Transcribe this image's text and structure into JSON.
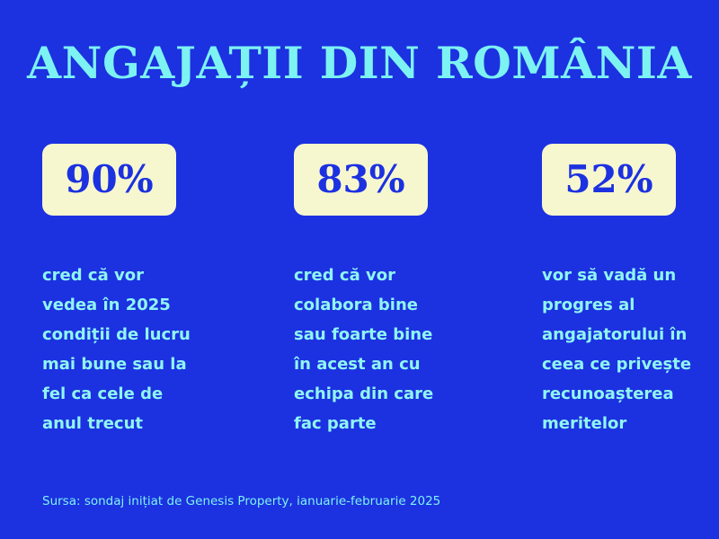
{
  "title": "ANGAJAȚII DIN ROMÂNIA",
  "stats": [
    {
      "value": "90%",
      "lines": [
        "cred că vor",
        "vedea în 2025",
        "condiții de lucru",
        "mai bune sau la",
        "fel ca cele de",
        "anul trecut"
      ]
    },
    {
      "value": "83%",
      "lines": [
        "cred că vor",
        "colabora bine",
        "sau foarte bine",
        "în acest an cu",
        "echipa din care",
        "fac parte"
      ]
    },
    {
      "value": "52%",
      "lines": [
        "vor să vadă un",
        "progres al",
        "angajatorului în",
        "ceea ce privește",
        "recunoașterea",
        "meritelor"
      ]
    }
  ],
  "source": "Sursa: sondaj inițiat de Genesis Property, ianuarie-februarie 2025",
  "colors": {
    "background": "#1c31e0",
    "title": "#7df2f2",
    "badge_background": "#f7f7cf",
    "badge_text": "#1c31e0",
    "description": "#8ff5f2"
  }
}
